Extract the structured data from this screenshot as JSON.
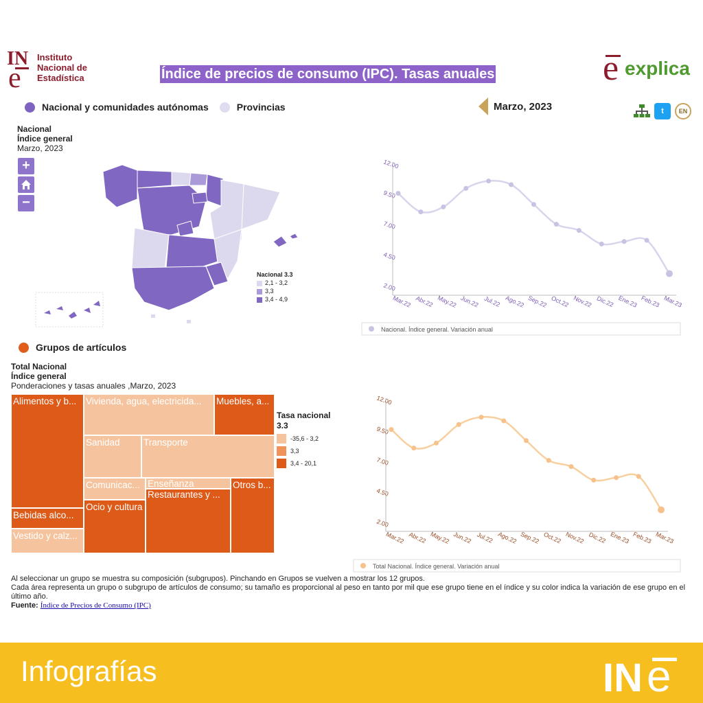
{
  "header": {
    "ine_logo_mark": "INE",
    "ine_logo_text": [
      "Instituto",
      "Nacional de",
      "Estadística"
    ],
    "title": "Índice de precios de consumo (IPC). Tasas anuales",
    "explica_logo": "explica"
  },
  "selector": {
    "option1": "Nacional y comunidades autónomas",
    "option2": "Provincias",
    "date": "Marzo, 2023"
  },
  "tools": {
    "twitter": "t",
    "lang": "EN"
  },
  "map": {
    "heading1": "Nacional",
    "heading2": "Índice general",
    "heading3": "Marzo, 2023",
    "zoom_in": "+",
    "zoom_out": "−",
    "legend_title": "Nacional 3.3",
    "legend_items": [
      "2,1 - 3,2",
      "3,3",
      "3,4 - 4,9"
    ],
    "colors": {
      "low": "#dcd9ee",
      "mid": "#aa9ad8",
      "high": "#7f67c2"
    }
  },
  "groups_selector": {
    "label": "Grupos de artículos"
  },
  "treemap": {
    "heading1": "Total Nacional",
    "heading2": "Índice general",
    "heading3": "Ponderaciones y tasas anuales ,Marzo, 2023",
    "cells": [
      "Alimentos y b...",
      "Vivienda, agua, electricida...",
      "Muebles, a...",
      "Sanidad",
      "Transporte",
      "Comunicac...",
      "Enseñanza",
      "Restaurantes y ...",
      "Otros b...",
      "Bebidas alco...",
      "Ocio y cultura",
      "Vestido y calz..."
    ],
    "legend_title": "Tasa nacional 3.3",
    "legend_items": [
      "-35,6 - 3,2",
      "3,3",
      "3,4 - 20,1"
    ],
    "colors": {
      "low": "#f5c49e",
      "mid": "#f0935a",
      "high": "#dd5a19"
    }
  },
  "chart_data": [
    {
      "type": "line",
      "x": [
        "Mar.22",
        "Abr.22",
        "May.22",
        "Jun.22",
        "Jul.22",
        "Ago.22",
        "Sep.22",
        "Oct.22",
        "Nov.22",
        "Dic.22",
        "Ene.23",
        "Feb.23",
        "Mar.23"
      ],
      "series": [
        {
          "name": "Nacional. Índice general. Variación anual",
          "values": [
            9.8,
            8.3,
            8.7,
            10.2,
            10.8,
            10.5,
            8.9,
            7.3,
            6.8,
            5.7,
            5.9,
            6.0,
            3.3
          ]
        }
      ],
      "yticks": [
        "12.00",
        "9.50",
        "7.00",
        "4.50",
        "2.00"
      ],
      "ylim": [
        2,
        12
      ],
      "color": "#d9d3ec",
      "point_color": "#c9c2e2",
      "tick_color": "#7b5ab6"
    },
    {
      "type": "line",
      "x": [
        "Mar.22",
        "Abr.22",
        "May.22",
        "Jun.22",
        "Jul.22",
        "Ago.22",
        "Sep.22",
        "Oct.22",
        "Nov.22",
        "Dic.22",
        "Ene.23",
        "Feb.23",
        "Mar.23"
      ],
      "series": [
        {
          "name": "Total Nacional. Índice general. Variación anual",
          "values": [
            9.8,
            8.3,
            8.7,
            10.2,
            10.8,
            10.5,
            8.9,
            7.3,
            6.8,
            5.7,
            5.9,
            6.0,
            3.3
          ]
        }
      ],
      "yticks": [
        "12.00",
        "9.50",
        "7.00",
        "4.50",
        "2.00"
      ],
      "ylim": [
        2,
        12
      ],
      "color": "#f8cf9e",
      "point_color": "#f6c18a",
      "tick_color": "#9b4a22"
    }
  ],
  "notes": {
    "line1": "Al seleccionar un grupo se muestra su composición (subgrupos). Pinchando en Grupos se vuelven a mostrar los 12 grupos.",
    "line2": "Cada área representa un grupo o subgrupo de artículos de consumo; su tamaño es proporcional al peso en tanto por mil que ese grupo tiene en el índice y su color indica la variación de ese grupo en el último año.",
    "source_label": "Fuente:",
    "source_link": "Índice de Precios de Consumo (IPC)"
  },
  "footer": {
    "label": "Infografías",
    "logo_in": "IN",
    "logo_e": "e"
  }
}
